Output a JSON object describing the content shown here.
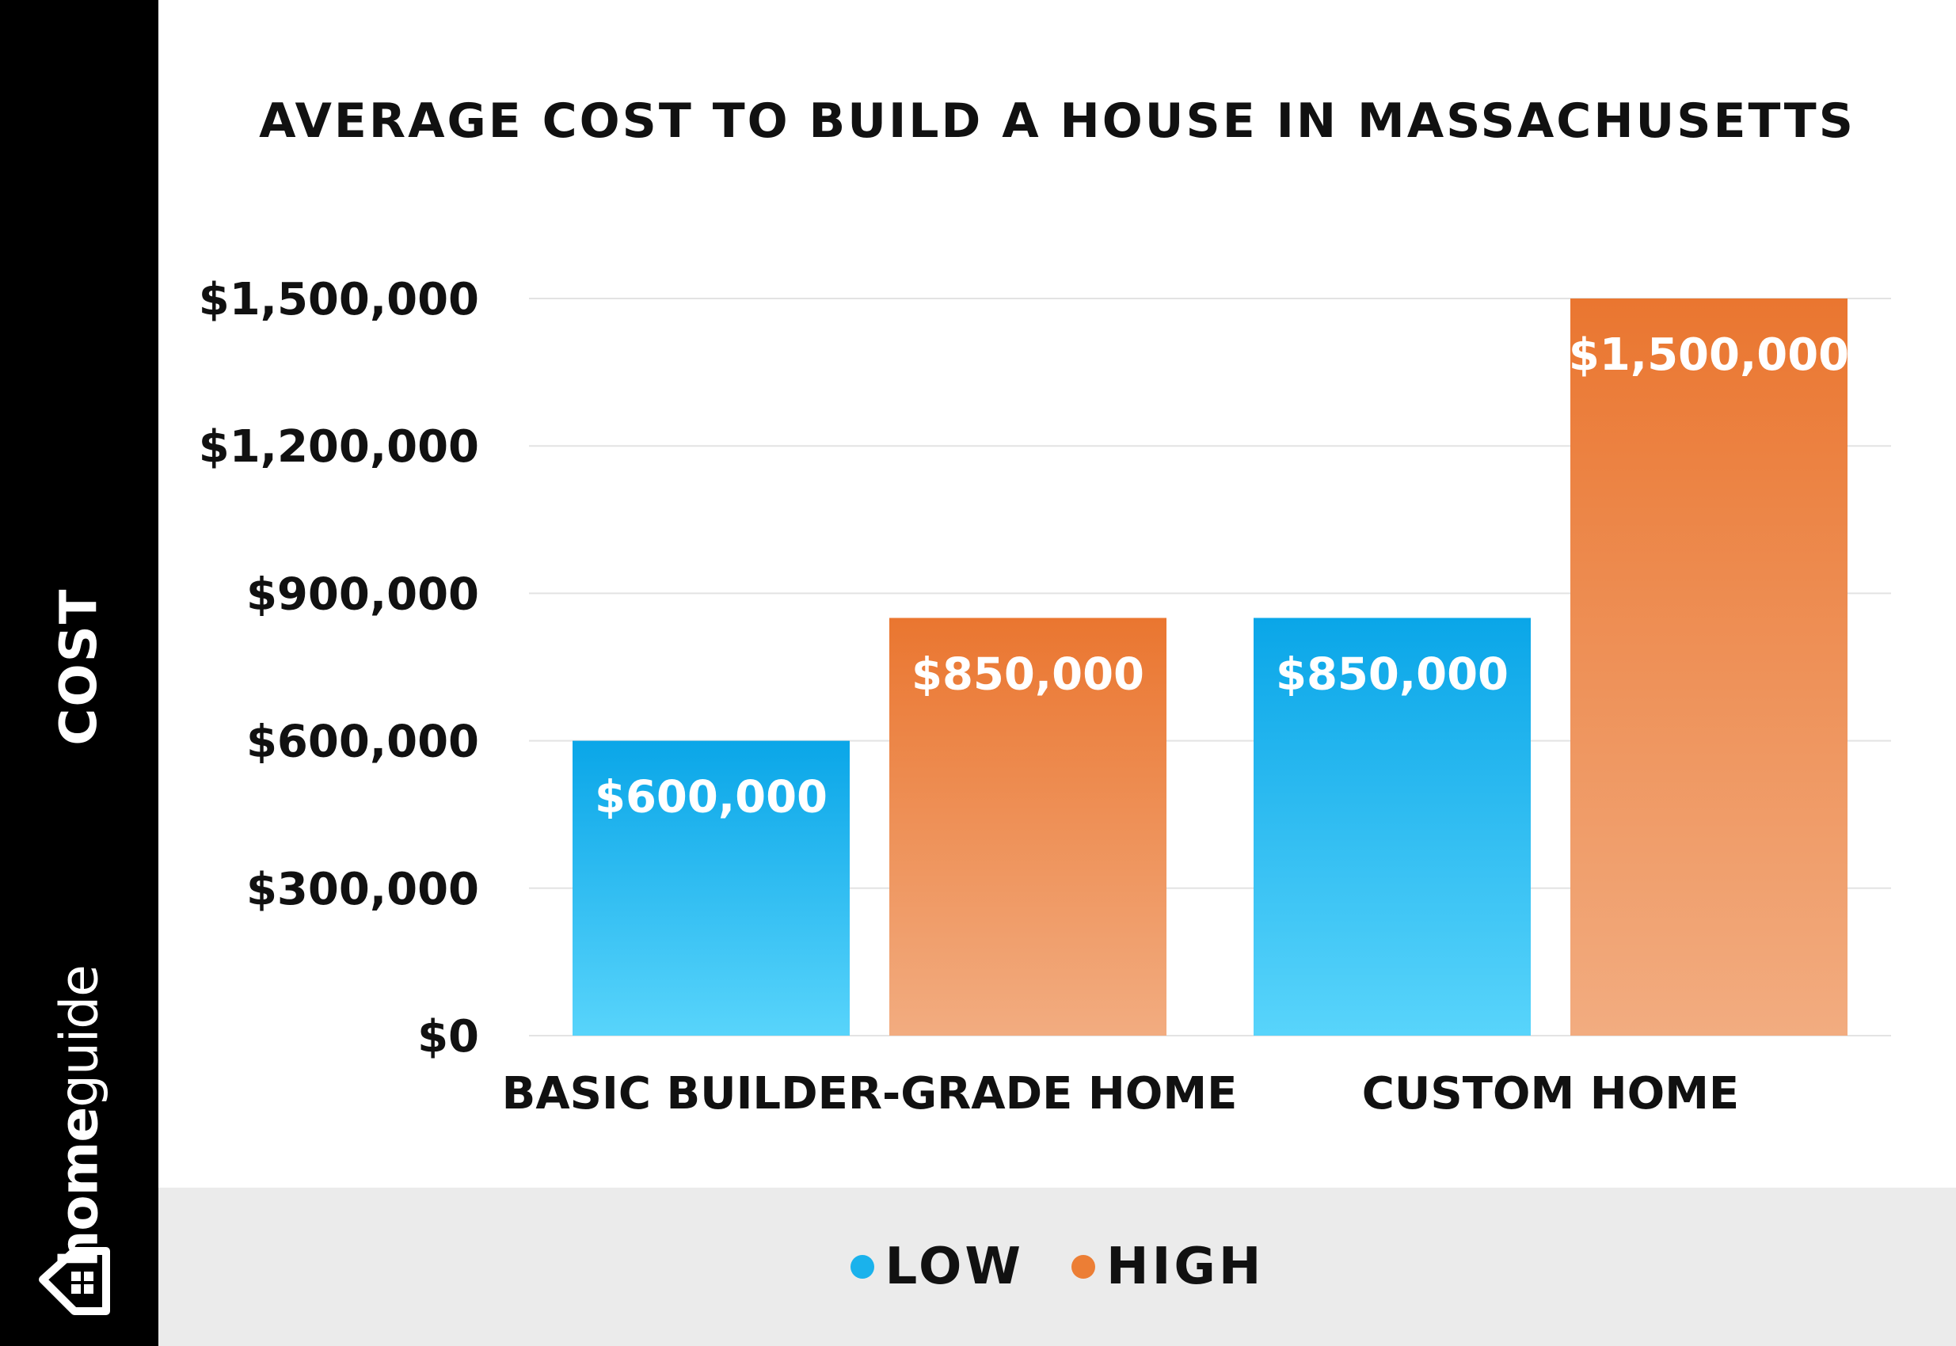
{
  "sidebar": {
    "axis_label": "COST",
    "brand_part1": "home",
    "brand_part2": "guide"
  },
  "chart_data": {
    "type": "bar",
    "title": "AVERAGE COST TO BUILD A HOUSE IN MASSACHUSETTS",
    "xlabel": "",
    "ylabel": "COST",
    "categories": [
      "BASIC BUILDER-GRADE HOME",
      "CUSTOM HOME"
    ],
    "series": [
      {
        "name": "LOW",
        "color": "#1ab2ec",
        "values": [
          600000,
          850000
        ],
        "labels": [
          "$600,000",
          "$850,000"
        ]
      },
      {
        "name": "HIGH",
        "color": "#ec7e35",
        "values": [
          850000,
          1500000
        ],
        "labels": [
          "$850,000",
          "$1,500,000"
        ]
      }
    ],
    "ylim": [
      0,
      1500000
    ],
    "yticks": [
      0,
      300000,
      600000,
      900000,
      1200000,
      1500000
    ],
    "ytick_labels": [
      "$0",
      "$300,000",
      "$600,000",
      "$900,000",
      "$1,200,000",
      "$1,500,000"
    ],
    "grid": true,
    "legend_position": "bottom"
  }
}
